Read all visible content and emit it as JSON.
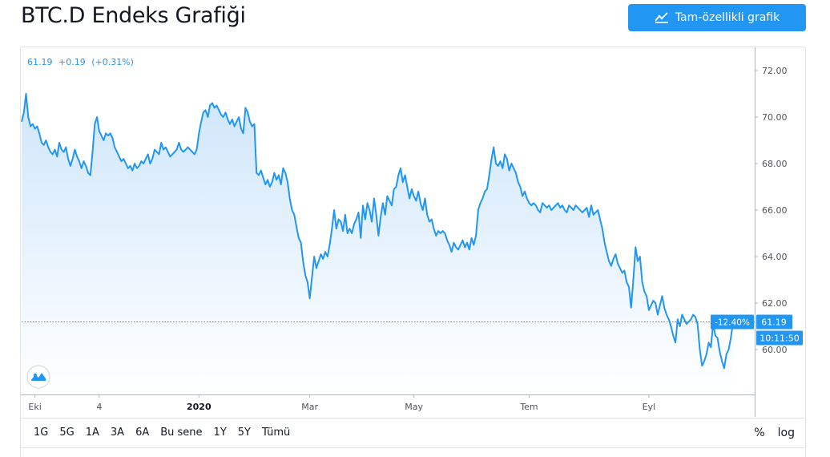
{
  "header": {
    "title": "BTC.D Endeks Grafiği",
    "full_button_label": "Tam-özellikli grafik",
    "full_button_icon": "chart-line-icon"
  },
  "legend": {
    "last": "61.19",
    "change": "+0.19",
    "change_pct": "(+0.31%)"
  },
  "range_buttons": [
    "1G",
    "5G",
    "1A",
    "3A",
    "6A",
    "Bu sene",
    "1Y",
    "5Y",
    "Tümü"
  ],
  "options": {
    "percent": "%",
    "log": "log"
  },
  "colors": {
    "line": "#2196f3",
    "fill_top": "#cfe6fb",
    "fill_bottom": "#ffffff",
    "accent": "#2196f3"
  },
  "chart_data": {
    "type": "area",
    "title": "BTC.D",
    "ylim": [
      58.0,
      73.0
    ],
    "y_ticks": [
      "72.00",
      "70.00",
      "68.00",
      "66.00",
      "64.00",
      "62.00",
      "60.00"
    ],
    "x_tick_labels": [
      {
        "label": "Eki",
        "index": 6
      },
      {
        "label": "4",
        "index": 35
      },
      {
        "label": "2020",
        "index": 80
      },
      {
        "label": "Mar",
        "index": 130
      },
      {
        "label": "May",
        "index": 177
      },
      {
        "label": "Tem",
        "index": 229
      },
      {
        "label": "Eyl",
        "index": 283
      }
    ],
    "price_label": "61.19",
    "change_label": "-12.40%",
    "time_label": "10:11:50",
    "values": [
      69.8,
      70.2,
      71.0,
      70.0,
      69.6,
      69.7,
      69.5,
      69.6,
      69.3,
      68.9,
      68.8,
      69.0,
      68.7,
      68.5,
      68.4,
      68.6,
      68.3,
      68.9,
      68.6,
      68.5,
      68.7,
      68.2,
      67.9,
      68.2,
      68.6,
      68.3,
      68.1,
      67.8,
      68.1,
      67.9,
      67.6,
      67.5,
      68.5,
      69.7,
      70.0,
      69.4,
      69.2,
      69.0,
      69.3,
      69.2,
      69.3,
      69.1,
      68.7,
      68.5,
      68.3,
      68.1,
      68.2,
      68.0,
      67.8,
      67.9,
      67.7,
      68.0,
      67.8,
      67.9,
      68.1,
      68.0,
      68.2,
      68.4,
      68.0,
      68.2,
      68.6,
      68.5,
      68.4,
      68.9,
      68.6,
      68.7,
      68.5,
      68.3,
      68.4,
      68.5,
      68.6,
      68.9,
      68.6,
      68.5,
      68.6,
      68.7,
      68.6,
      68.5,
      68.4,
      68.6,
      69.3,
      69.8,
      70.2,
      70.3,
      70.0,
      70.5,
      70.6,
      70.4,
      70.5,
      70.3,
      70.1,
      70.0,
      70.2,
      69.9,
      69.7,
      69.9,
      69.6,
      69.8,
      70.0,
      69.5,
      69.3,
      70.4,
      70.2,
      69.8,
      69.6,
      69.7,
      67.6,
      67.5,
      67.7,
      67.4,
      67.1,
      67.3,
      67.0,
      67.2,
      67.6,
      67.3,
      67.5,
      67.1,
      67.8,
      67.6,
      67.2,
      66.5,
      66.0,
      65.8,
      65.3,
      64.8,
      64.6,
      63.8,
      63.2,
      62.9,
      62.2,
      63.1,
      64.0,
      63.5,
      63.8,
      64.1,
      63.9,
      64.2,
      64.0,
      64.5,
      65.2,
      66.0,
      65.2,
      65.6,
      65.5,
      65.1,
      65.8,
      65.0,
      65.2,
      65.0,
      65.4,
      65.6,
      65.9,
      64.8,
      66.2,
      65.6,
      66.3,
      66.0,
      65.5,
      66.5,
      65.8,
      64.9,
      65.7,
      66.3,
      65.8,
      66.6,
      66.4,
      66.2,
      66.9,
      67.0,
      67.5,
      67.8,
      67.2,
      67.5,
      67.0,
      66.5,
      66.9,
      66.6,
      66.4,
      66.8,
      66.3,
      66.0,
      66.5,
      65.8,
      65.5,
      65.6,
      65.2,
      64.9,
      65.1,
      65.0,
      65.1,
      65.0,
      64.7,
      64.5,
      64.2,
      64.6,
      64.4,
      64.3,
      64.5,
      64.7,
      64.4,
      64.6,
      64.3,
      64.8,
      64.5,
      64.9,
      66.0,
      66.3,
      66.5,
      66.8,
      66.9,
      67.5,
      68.2,
      68.7,
      68.0,
      67.9,
      68.1,
      67.8,
      68.4,
      68.2,
      67.7,
      68.0,
      67.8,
      67.6,
      67.2,
      67.0,
      66.6,
      66.8,
      66.5,
      66.3,
      66.2,
      66.3,
      66.2,
      66.0,
      65.9,
      66.3,
      66.2,
      66.1,
      66.2,
      66.0,
      66.1,
      66.2,
      66.3,
      66.1,
      66.2,
      66.0,
      65.9,
      66.2,
      66.1,
      66.0,
      66.2,
      66.1,
      66.0,
      65.9,
      66.0,
      66.1,
      65.7,
      66.2,
      65.8,
      65.9,
      66.0,
      65.6,
      65.2,
      64.6,
      64.2,
      63.8,
      63.6,
      63.9,
      64.1,
      63.7,
      63.5,
      63.3,
      63.4,
      62.9,
      62.7,
      61.8,
      63.0,
      64.4,
      63.8,
      64.0,
      62.9,
      62.5,
      62.3,
      61.7,
      61.9,
      62.1,
      62.0,
      61.5,
      61.9,
      62.3,
      61.8,
      61.5,
      61.3,
      61.0,
      60.6,
      60.3,
      61.3,
      61.0,
      61.5,
      61.3,
      61.1,
      61.2,
      61.3,
      61.5,
      61.4,
      61.1,
      60.0,
      59.3,
      59.5,
      59.8,
      60.3,
      60.1,
      61.1,
      60.6,
      60.5,
      59.9,
      59.5,
      59.2,
      59.8,
      60.0,
      60.5,
      61.19
    ]
  }
}
